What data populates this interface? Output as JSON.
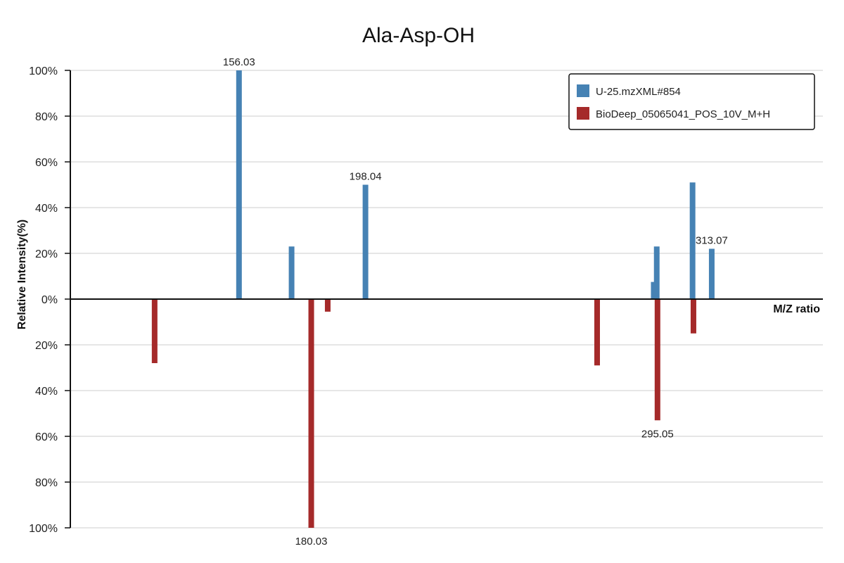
{
  "chart_data": {
    "type": "bar",
    "title": "Ala-Asp-OH",
    "xlabel": "M/Z ratio",
    "ylabel": "Relative Intensity(%)",
    "y_ticks_top": [
      "100%",
      "80%",
      "60%",
      "40%",
      "20%",
      "0%"
    ],
    "y_ticks_bottom": [
      "20%",
      "40%",
      "60%",
      "80%",
      "100%"
    ],
    "ylim": [
      -100,
      100
    ],
    "xlim": [
      100,
      350
    ],
    "grid": true,
    "legend_position": "top-right",
    "series": [
      {
        "name": "U-25.mzXML#854",
        "color": "#4682B4",
        "direction": "up",
        "peaks": [
          {
            "mz": 156.03,
            "intensity": 100,
            "label": "156.03"
          },
          {
            "mz": 173.5,
            "intensity": 23
          },
          {
            "mz": 198.04,
            "intensity": 50,
            "label": "198.04"
          },
          {
            "mz": 293.8,
            "intensity": 7.5
          },
          {
            "mz": 294.8,
            "intensity": 23
          },
          {
            "mz": 306.7,
            "intensity": 51
          },
          {
            "mz": 313.07,
            "intensity": 22,
            "label": "313.07"
          }
        ]
      },
      {
        "name": "BioDeep_05065041_POS_10V_M+H",
        "color": "#A52A2A",
        "direction": "down",
        "peaks": [
          {
            "mz": 128.0,
            "intensity": 28
          },
          {
            "mz": 180.03,
            "intensity": 100,
            "label": "180.03"
          },
          {
            "mz": 185.5,
            "intensity": 5.5
          },
          {
            "mz": 275.0,
            "intensity": 29
          },
          {
            "mz": 295.05,
            "intensity": 53,
            "label": "295.05"
          },
          {
            "mz": 307.0,
            "intensity": 15
          }
        ]
      }
    ]
  }
}
